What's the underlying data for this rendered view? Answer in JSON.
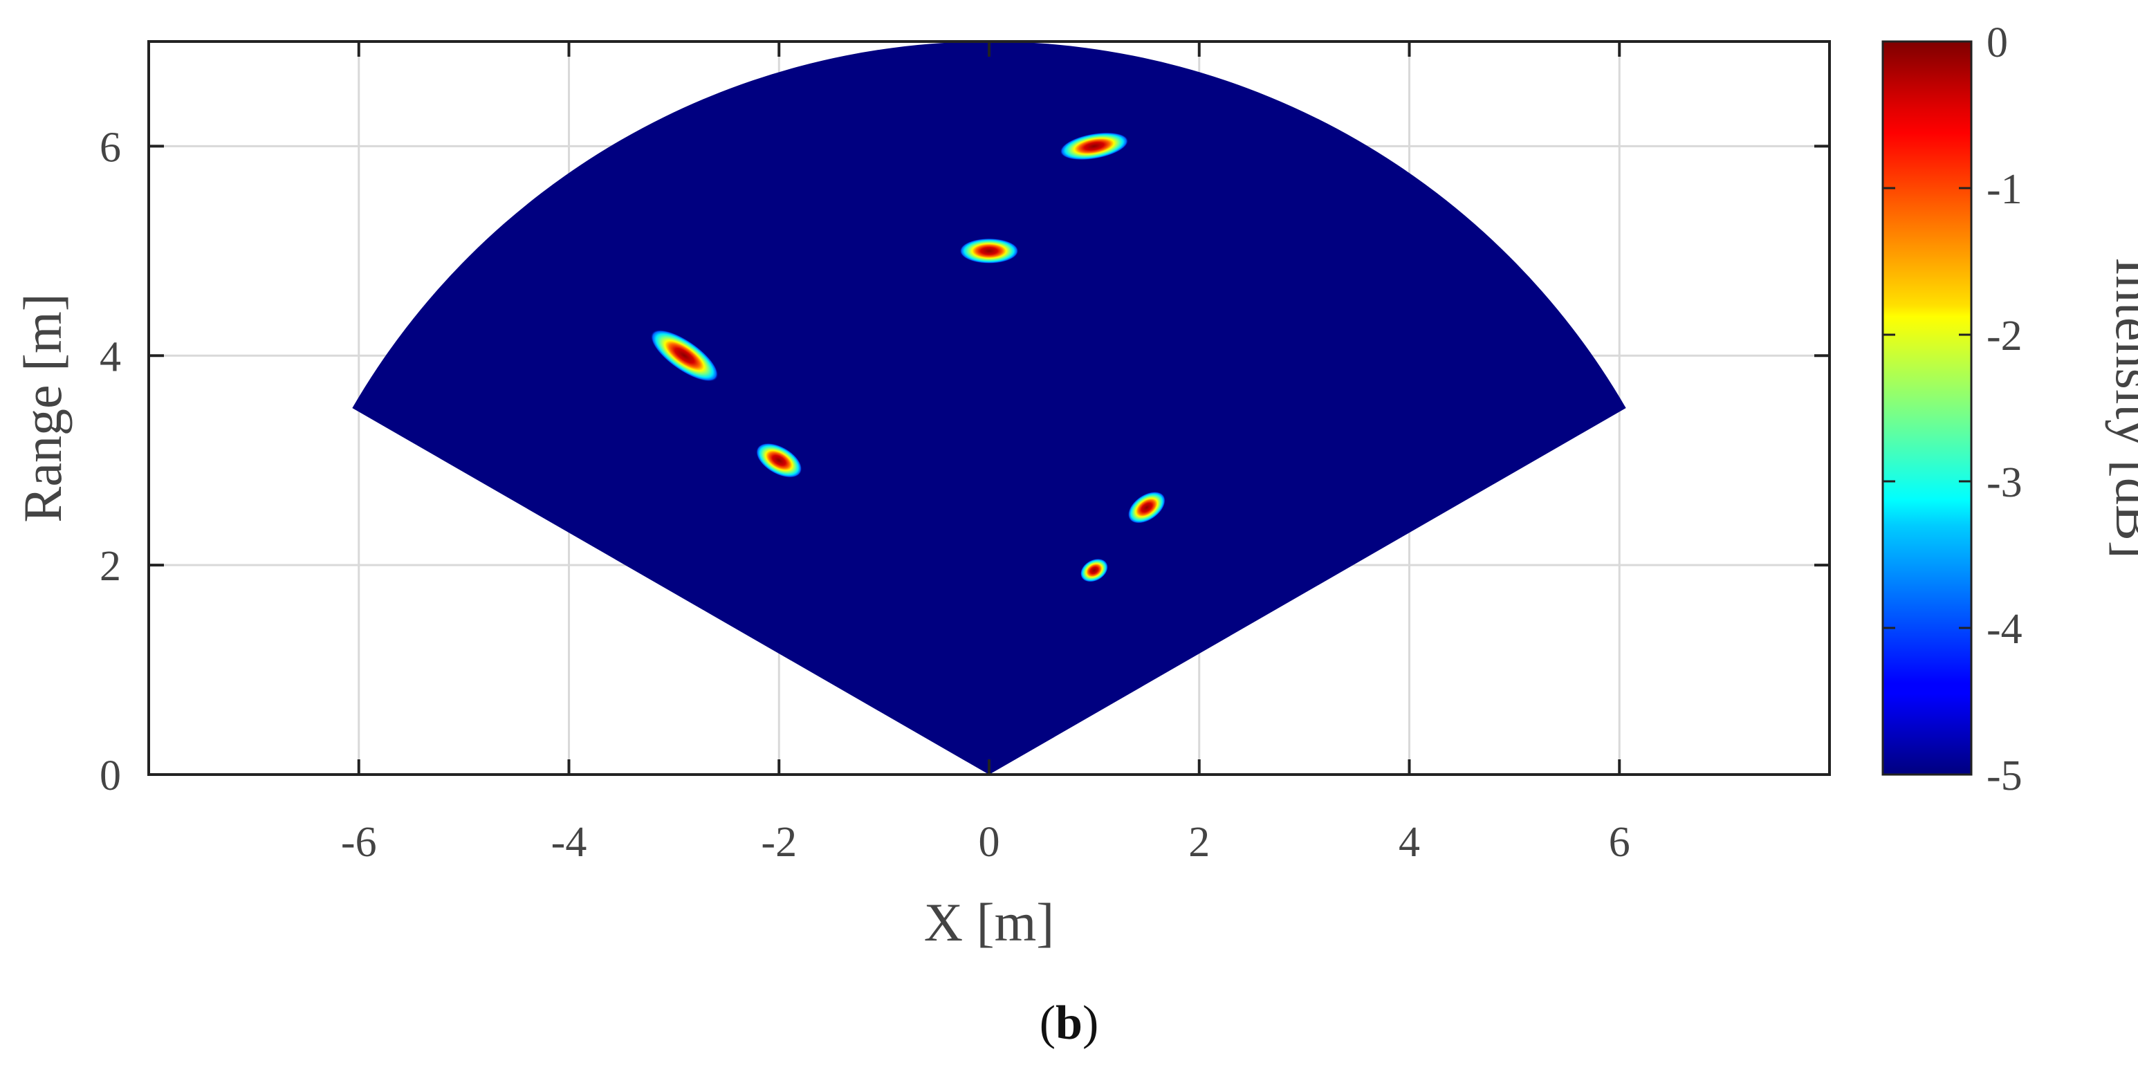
{
  "chart_data": {
    "type": "heatmap",
    "xlabel": "X [m]",
    "ylabel": "Range [m]",
    "xlim": [
      -8,
      8
    ],
    "ylim": [
      0,
      7
    ],
    "x_ticks": [
      "-6",
      "-4",
      "-2",
      "0",
      "2",
      "4",
      "6"
    ],
    "y_ticks": [
      "0",
      "2",
      "4",
      "6"
    ],
    "grid": true,
    "fan": {
      "apex": [
        0,
        0
      ],
      "radius_m": 7,
      "half_angle_deg": 60
    },
    "background_db": -5,
    "targets": [
      {
        "x": 1.0,
        "y": 6.0,
        "intensity_db": 0,
        "angle_deg": 10,
        "rx_m": 0.33,
        "ry_m": 0.12
      },
      {
        "x": 0.0,
        "y": 5.0,
        "intensity_db": 0,
        "angle_deg": 0,
        "rx_m": 0.28,
        "ry_m": 0.12
      },
      {
        "x": -2.9,
        "y": 4.0,
        "intensity_db": 0,
        "angle_deg": -35,
        "rx_m": 0.38,
        "ry_m": 0.14
      },
      {
        "x": -2.0,
        "y": 3.0,
        "intensity_db": 0,
        "angle_deg": -30,
        "rx_m": 0.24,
        "ry_m": 0.13
      },
      {
        "x": 1.5,
        "y": 2.55,
        "intensity_db": 0,
        "angle_deg": 35,
        "rx_m": 0.2,
        "ry_m": 0.12
      },
      {
        "x": 1.0,
        "y": 1.95,
        "intensity_db": 0,
        "angle_deg": 30,
        "rx_m": 0.14,
        "ry_m": 0.1
      }
    ],
    "colorbar": {
      "label": "Intensity [dB]",
      "range": [
        -5,
        0
      ],
      "ticks": [
        "0",
        "-1",
        "-2",
        "-3",
        "-4",
        "-5"
      ],
      "colormap": "jet"
    }
  },
  "caption": {
    "open": "(",
    "letter": "b",
    "close": ")"
  },
  "colors": {
    "background": "#000080",
    "axis": "#222222",
    "grid": "#d9d9d9"
  }
}
